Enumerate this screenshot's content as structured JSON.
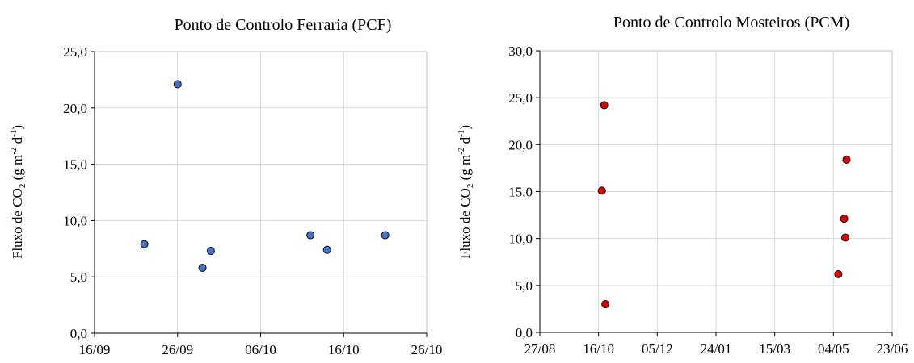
{
  "chart_data": [
    {
      "type": "scatter",
      "title": "Ponto de Controlo Ferraria (PCF)",
      "ylabel": "Fluxo de CO₂ (g m⁻² d⁻¹)",
      "ylabel_parts": {
        "prefix": "Fluxo de CO",
        "sub": "2",
        "mid": " (g m",
        "sup1": "-2",
        "mid2": " d",
        "sup2": "-1",
        "suffix": ")"
      },
      "xlabel": "",
      "xlim": [
        "2023-09-16",
        "2023-10-26"
      ],
      "ylim": [
        0,
        25
      ],
      "x_ticks": [
        "16/09",
        "26/09",
        "06/10",
        "16/10",
        "26/10"
      ],
      "y_ticks": [
        "0,0",
        "5,0",
        "10,0",
        "15,0",
        "20,0",
        "25,0"
      ],
      "grid": true,
      "marker_color": "#4472c4",
      "points": [
        {
          "x": "2023-09-22",
          "y": 7.9
        },
        {
          "x": "2023-09-26",
          "y": 22.1
        },
        {
          "x": "2023-09-29",
          "y": 5.8
        },
        {
          "x": "2023-09-30",
          "y": 7.3
        },
        {
          "x": "2023-10-12",
          "y": 8.7
        },
        {
          "x": "2023-10-14",
          "y": 7.4
        },
        {
          "x": "2023-10-21",
          "y": 8.7
        }
      ]
    },
    {
      "type": "scatter",
      "title": "Ponto de Controlo Mosteiros (PCM)",
      "ylabel": "Fluxo de CO₂ (g m⁻² d⁻¹)",
      "ylabel_parts": {
        "prefix": "Fluxo de CO",
        "sub": "2",
        "mid": " (g m",
        "sup1": "-2",
        "mid2": " d",
        "sup2": "-1",
        "suffix": ")"
      },
      "xlabel": "",
      "xlim": [
        "2023-08-27",
        "2024-06-23"
      ],
      "ylim": [
        0,
        30
      ],
      "x_ticks": [
        "27/08",
        "16/10",
        "05/12",
        "24/01",
        "15/03",
        "04/05",
        "23/06"
      ],
      "y_ticks": [
        "0,0",
        "5,0",
        "10,0",
        "15,0",
        "20,0",
        "25,0",
        "30,0"
      ],
      "grid": true,
      "marker_color": "#e00000",
      "points": [
        {
          "x": "2023-10-19",
          "y": 15.1
        },
        {
          "x": "2023-10-21",
          "y": 24.2
        },
        {
          "x": "2023-10-22",
          "y": 3.0
        },
        {
          "x": "2024-05-08",
          "y": 6.2
        },
        {
          "x": "2024-05-13",
          "y": 12.1
        },
        {
          "x": "2024-05-14",
          "y": 10.1
        },
        {
          "x": "2024-05-15",
          "y": 18.4
        }
      ]
    }
  ]
}
